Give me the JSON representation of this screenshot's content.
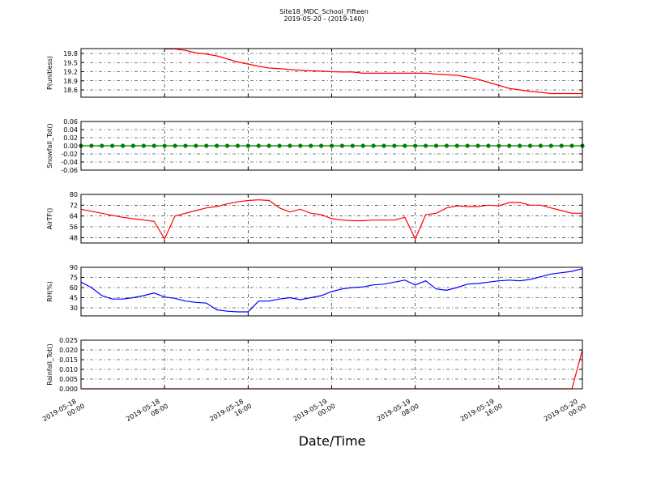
{
  "title": "Site18_MDC_School_Fifteen",
  "subtitle": "2019-05-20 - (2019-140)",
  "xlabel": "Date/Time",
  "chart_data": [
    {
      "type": "line",
      "ylabel": "P(unitless)",
      "color": "#ff0000",
      "grid": true,
      "xlim": [
        "2019-05-18 00:00",
        "2019-05-20 00:00"
      ],
      "xticks": [
        "2019-05-18 00:00",
        "2019-05-18 08:00",
        "2019-05-18 16:00",
        "2019-05-19 00:00",
        "2019-05-19 08:00",
        "2019-05-19 16:00",
        "2019-05-20 00:00"
      ],
      "ylim": [
        18.36,
        19.96
      ],
      "yticks": [
        18.6,
        18.9,
        19.2,
        19.5,
        19.8
      ],
      "x": [
        "2019-05-18 00:00",
        "2019-05-18 01:00",
        "2019-05-18 02:00",
        "2019-05-18 03:00",
        "2019-05-18 04:00",
        "2019-05-18 05:00",
        "2019-05-18 06:00",
        "2019-05-18 07:00",
        "2019-05-18 08:00",
        "2019-05-18 09:00",
        "2019-05-18 10:00",
        "2019-05-18 11:00",
        "2019-05-18 12:00",
        "2019-05-18 13:00",
        "2019-05-18 14:00",
        "2019-05-18 15:00",
        "2019-05-18 16:00",
        "2019-05-18 17:00",
        "2019-05-18 18:00",
        "2019-05-18 19:00",
        "2019-05-18 20:00",
        "2019-05-18 21:00",
        "2019-05-18 22:00",
        "2019-05-18 23:00",
        "2019-05-19 00:00",
        "2019-05-19 01:00",
        "2019-05-19 02:00",
        "2019-05-19 03:00",
        "2019-05-19 04:00",
        "2019-05-19 05:00",
        "2019-05-19 06:00",
        "2019-05-19 07:00",
        "2019-05-19 08:00",
        "2019-05-19 09:00",
        "2019-05-19 10:00",
        "2019-05-19 11:00",
        "2019-05-19 12:00",
        "2019-05-19 13:00",
        "2019-05-19 14:00",
        "2019-05-19 15:00",
        "2019-05-19 16:00",
        "2019-05-19 17:00",
        "2019-05-19 18:00",
        "2019-05-19 19:00",
        "2019-05-19 20:00",
        "2019-05-19 21:00",
        "2019-05-19 22:00",
        "2019-05-19 23:00",
        "2019-05-20 00:00"
      ],
      "values": [
        null,
        null,
        null,
        null,
        null,
        null,
        null,
        null,
        19.95,
        19.95,
        19.9,
        19.82,
        19.78,
        19.72,
        19.62,
        19.52,
        19.45,
        19.38,
        19.32,
        19.3,
        19.27,
        19.25,
        19.23,
        19.22,
        19.2,
        19.19,
        19.19,
        19.15,
        19.15,
        19.15,
        19.15,
        19.15,
        19.15,
        19.15,
        19.12,
        19.1,
        19.08,
        19.02,
        18.95,
        18.85,
        18.75,
        18.65,
        18.6,
        18.55,
        18.52,
        18.48,
        18.48,
        18.48,
        18.48
      ]
    },
    {
      "type": "line",
      "ylabel": "Snowfall_Tot()",
      "color": "#008000",
      "marker": "o",
      "grid": true,
      "xlim": [
        "2019-05-18 00:00",
        "2019-05-20 00:00"
      ],
      "xticks": [
        "2019-05-18 00:00",
        "2019-05-18 08:00",
        "2019-05-18 16:00",
        "2019-05-19 00:00",
        "2019-05-19 08:00",
        "2019-05-19 16:00",
        "2019-05-20 00:00"
      ],
      "ylim": [
        -0.06,
        0.06
      ],
      "yticks": [
        -0.06,
        -0.04,
        -0.02,
        {
          "value": 0,
          "label": "0.00"
        },
        0.02,
        0.04,
        0.06
      ],
      "x": [
        "2019-05-18 00:00",
        "2019-05-18 01:00",
        "2019-05-18 02:00",
        "2019-05-18 03:00",
        "2019-05-18 04:00",
        "2019-05-18 05:00",
        "2019-05-18 06:00",
        "2019-05-18 07:00",
        "2019-05-18 08:00",
        "2019-05-18 09:00",
        "2019-05-18 10:00",
        "2019-05-18 11:00",
        "2019-05-18 12:00",
        "2019-05-18 13:00",
        "2019-05-18 14:00",
        "2019-05-18 15:00",
        "2019-05-18 16:00",
        "2019-05-18 17:00",
        "2019-05-18 18:00",
        "2019-05-18 19:00",
        "2019-05-18 20:00",
        "2019-05-18 21:00",
        "2019-05-18 22:00",
        "2019-05-18 23:00",
        "2019-05-19 00:00",
        "2019-05-19 01:00",
        "2019-05-19 02:00",
        "2019-05-19 03:00",
        "2019-05-19 04:00",
        "2019-05-19 05:00",
        "2019-05-19 06:00",
        "2019-05-19 07:00",
        "2019-05-19 08:00",
        "2019-05-19 09:00",
        "2019-05-19 10:00",
        "2019-05-19 11:00",
        "2019-05-19 12:00",
        "2019-05-19 13:00",
        "2019-05-19 14:00",
        "2019-05-19 15:00",
        "2019-05-19 16:00",
        "2019-05-19 17:00",
        "2019-05-19 18:00",
        "2019-05-19 19:00",
        "2019-05-19 20:00",
        "2019-05-19 21:00",
        "2019-05-19 22:00",
        "2019-05-19 23:00",
        "2019-05-20 00:00"
      ],
      "values": [
        0,
        0,
        0,
        0,
        0,
        0,
        0,
        0,
        0,
        0,
        0,
        0,
        0,
        0,
        0,
        0,
        0,
        0,
        0,
        0,
        0,
        0,
        0,
        0,
        0,
        0,
        0,
        0,
        0,
        0,
        0,
        0,
        0,
        0,
        0,
        0,
        0,
        0,
        0,
        0,
        0,
        0,
        0,
        0,
        0,
        0,
        0,
        0,
        0
      ]
    },
    {
      "type": "line",
      "ylabel": "AirTF()",
      "color": "#ff0000",
      "grid": true,
      "xlim": [
        "2019-05-18 00:00",
        "2019-05-20 00:00"
      ],
      "xticks": [
        "2019-05-18 00:00",
        "2019-05-18 08:00",
        "2019-05-18 16:00",
        "2019-05-19 00:00",
        "2019-05-19 08:00",
        "2019-05-19 16:00",
        "2019-05-20 00:00"
      ],
      "ylim": [
        44,
        80
      ],
      "yticks": [
        48,
        56,
        64,
        72,
        80
      ],
      "x": [
        "2019-05-18 00:00",
        "2019-05-18 01:00",
        "2019-05-18 02:00",
        "2019-05-18 03:00",
        "2019-05-18 04:00",
        "2019-05-18 05:00",
        "2019-05-18 06:00",
        "2019-05-18 07:00",
        "2019-05-18 08:00",
        "2019-05-18 09:00",
        "2019-05-18 10:00",
        "2019-05-18 11:00",
        "2019-05-18 12:00",
        "2019-05-18 13:00",
        "2019-05-18 14:00",
        "2019-05-18 15:00",
        "2019-05-18 16:00",
        "2019-05-18 17:00",
        "2019-05-18 18:00",
        "2019-05-18 19:00",
        "2019-05-18 20:00",
        "2019-05-18 21:00",
        "2019-05-18 22:00",
        "2019-05-18 23:00",
        "2019-05-19 00:00",
        "2019-05-19 01:00",
        "2019-05-19 02:00",
        "2019-05-19 03:00",
        "2019-05-19 04:00",
        "2019-05-19 05:00",
        "2019-05-19 06:00",
        "2019-05-19 07:00",
        "2019-05-19 08:00",
        "2019-05-19 09:00",
        "2019-05-19 10:00",
        "2019-05-19 11:00",
        "2019-05-19 12:00",
        "2019-05-19 13:00",
        "2019-05-19 14:00",
        "2019-05-19 15:00",
        "2019-05-19 16:00",
        "2019-05-19 17:00",
        "2019-05-19 18:00",
        "2019-05-19 19:00",
        "2019-05-19 20:00",
        "2019-05-19 21:00",
        "2019-05-19 22:00",
        "2019-05-19 23:00",
        "2019-05-20 00:00"
      ],
      "values": [
        69,
        67.5,
        66,
        64.5,
        63,
        62,
        61,
        60,
        47,
        64,
        66,
        68,
        70,
        71,
        73,
        74.5,
        75.5,
        76,
        75.5,
        70,
        67,
        69,
        66,
        65,
        62,
        61,
        60.5,
        60.5,
        61,
        61,
        61,
        63,
        47,
        65,
        66,
        70,
        71.5,
        71,
        71,
        72,
        71.5,
        74,
        74,
        72,
        72,
        70,
        68,
        66,
        66
      ]
    },
    {
      "type": "line",
      "ylabel": "RH(%)",
      "color": "#0000ff",
      "grid": true,
      "xlim": [
        "2019-05-18 00:00",
        "2019-05-20 00:00"
      ],
      "xticks": [
        "2019-05-18 00:00",
        "2019-05-18 08:00",
        "2019-05-18 16:00",
        "2019-05-19 00:00",
        "2019-05-19 08:00",
        "2019-05-19 16:00",
        "2019-05-20 00:00"
      ],
      "ylim": [
        18,
        90
      ],
      "yticks": [
        30,
        45,
        60,
        75,
        90
      ],
      "x": [
        "2019-05-18 00:00",
        "2019-05-18 01:00",
        "2019-05-18 02:00",
        "2019-05-18 03:00",
        "2019-05-18 04:00",
        "2019-05-18 05:00",
        "2019-05-18 06:00",
        "2019-05-18 07:00",
        "2019-05-18 08:00",
        "2019-05-18 09:00",
        "2019-05-18 10:00",
        "2019-05-18 11:00",
        "2019-05-18 12:00",
        "2019-05-18 13:00",
        "2019-05-18 14:00",
        "2019-05-18 15:00",
        "2019-05-18 16:00",
        "2019-05-18 17:00",
        "2019-05-18 18:00",
        "2019-05-18 19:00",
        "2019-05-18 20:00",
        "2019-05-18 21:00",
        "2019-05-18 22:00",
        "2019-05-18 23:00",
        "2019-05-19 00:00",
        "2019-05-19 01:00",
        "2019-05-19 02:00",
        "2019-05-19 03:00",
        "2019-05-19 04:00",
        "2019-05-19 05:00",
        "2019-05-19 06:00",
        "2019-05-19 07:00",
        "2019-05-19 08:00",
        "2019-05-19 09:00",
        "2019-05-19 10:00",
        "2019-05-19 11:00",
        "2019-05-19 12:00",
        "2019-05-19 13:00",
        "2019-05-19 14:00",
        "2019-05-19 15:00",
        "2019-05-19 16:00",
        "2019-05-19 17:00",
        "2019-05-19 18:00",
        "2019-05-19 19:00",
        "2019-05-19 20:00",
        "2019-05-19 21:00",
        "2019-05-19 22:00",
        "2019-05-19 23:00",
        "2019-05-20 00:00"
      ],
      "values": [
        68,
        60,
        48,
        43,
        43,
        45,
        48,
        52,
        46,
        44,
        40,
        38,
        37,
        27,
        25,
        24,
        24,
        40,
        40,
        43,
        45,
        42,
        45,
        48,
        54,
        58,
        60,
        61,
        64,
        65,
        68,
        71,
        64,
        70,
        58,
        56,
        60,
        65,
        66,
        68,
        70,
        71,
        70,
        72,
        76,
        80,
        82,
        84,
        88
      ]
    },
    {
      "type": "line",
      "ylabel": "Rainfall_Tot()",
      "color": "#ff0000",
      "grid": true,
      "xlim": [
        "2019-05-18 00:00",
        "2019-05-20 00:00"
      ],
      "xticks": [
        "2019-05-18 00:00",
        "2019-05-18 08:00",
        "2019-05-18 16:00",
        "2019-05-19 00:00",
        "2019-05-19 08:00",
        "2019-05-19 16:00",
        "2019-05-20 00:00"
      ],
      "ylim": [
        0,
        0.025
      ],
      "yticks": [
        {
          "value": 0,
          "label": "0.000"
        },
        0.005,
        {
          "value": 0.01,
          "label": "0.010"
        },
        0.015,
        {
          "value": 0.02,
          "label": "0.020"
        },
        0.025
      ],
      "x": [
        "2019-05-18 00:00",
        "2019-05-18 01:00",
        "2019-05-18 02:00",
        "2019-05-18 03:00",
        "2019-05-18 04:00",
        "2019-05-18 05:00",
        "2019-05-18 06:00",
        "2019-05-18 07:00",
        "2019-05-18 08:00",
        "2019-05-18 09:00",
        "2019-05-18 10:00",
        "2019-05-18 11:00",
        "2019-05-18 12:00",
        "2019-05-18 13:00",
        "2019-05-18 14:00",
        "2019-05-18 15:00",
        "2019-05-18 16:00",
        "2019-05-18 17:00",
        "2019-05-18 18:00",
        "2019-05-18 19:00",
        "2019-05-18 20:00",
        "2019-05-18 21:00",
        "2019-05-18 22:00",
        "2019-05-18 23:00",
        "2019-05-19 00:00",
        "2019-05-19 01:00",
        "2019-05-19 02:00",
        "2019-05-19 03:00",
        "2019-05-19 04:00",
        "2019-05-19 05:00",
        "2019-05-19 06:00",
        "2019-05-19 07:00",
        "2019-05-19 08:00",
        "2019-05-19 09:00",
        "2019-05-19 10:00",
        "2019-05-19 11:00",
        "2019-05-19 12:00",
        "2019-05-19 13:00",
        "2019-05-19 14:00",
        "2019-05-19 15:00",
        "2019-05-19 16:00",
        "2019-05-19 17:00",
        "2019-05-19 18:00",
        "2019-05-19 19:00",
        "2019-05-19 20:00",
        "2019-05-19 21:00",
        "2019-05-19 22:00",
        "2019-05-19 23:00",
        "2019-05-20 00:00"
      ],
      "values": [
        0,
        0,
        0,
        0,
        0,
        0,
        0,
        0,
        0,
        0,
        0,
        0,
        0,
        0,
        0,
        0,
        0,
        0,
        0,
        0,
        0,
        0,
        0,
        0,
        0,
        0,
        0,
        0,
        0,
        0,
        0,
        0,
        0,
        0,
        0,
        0,
        0,
        0,
        0,
        0,
        0,
        0,
        0,
        0,
        0,
        0,
        0,
        0,
        0.02
      ]
    }
  ]
}
